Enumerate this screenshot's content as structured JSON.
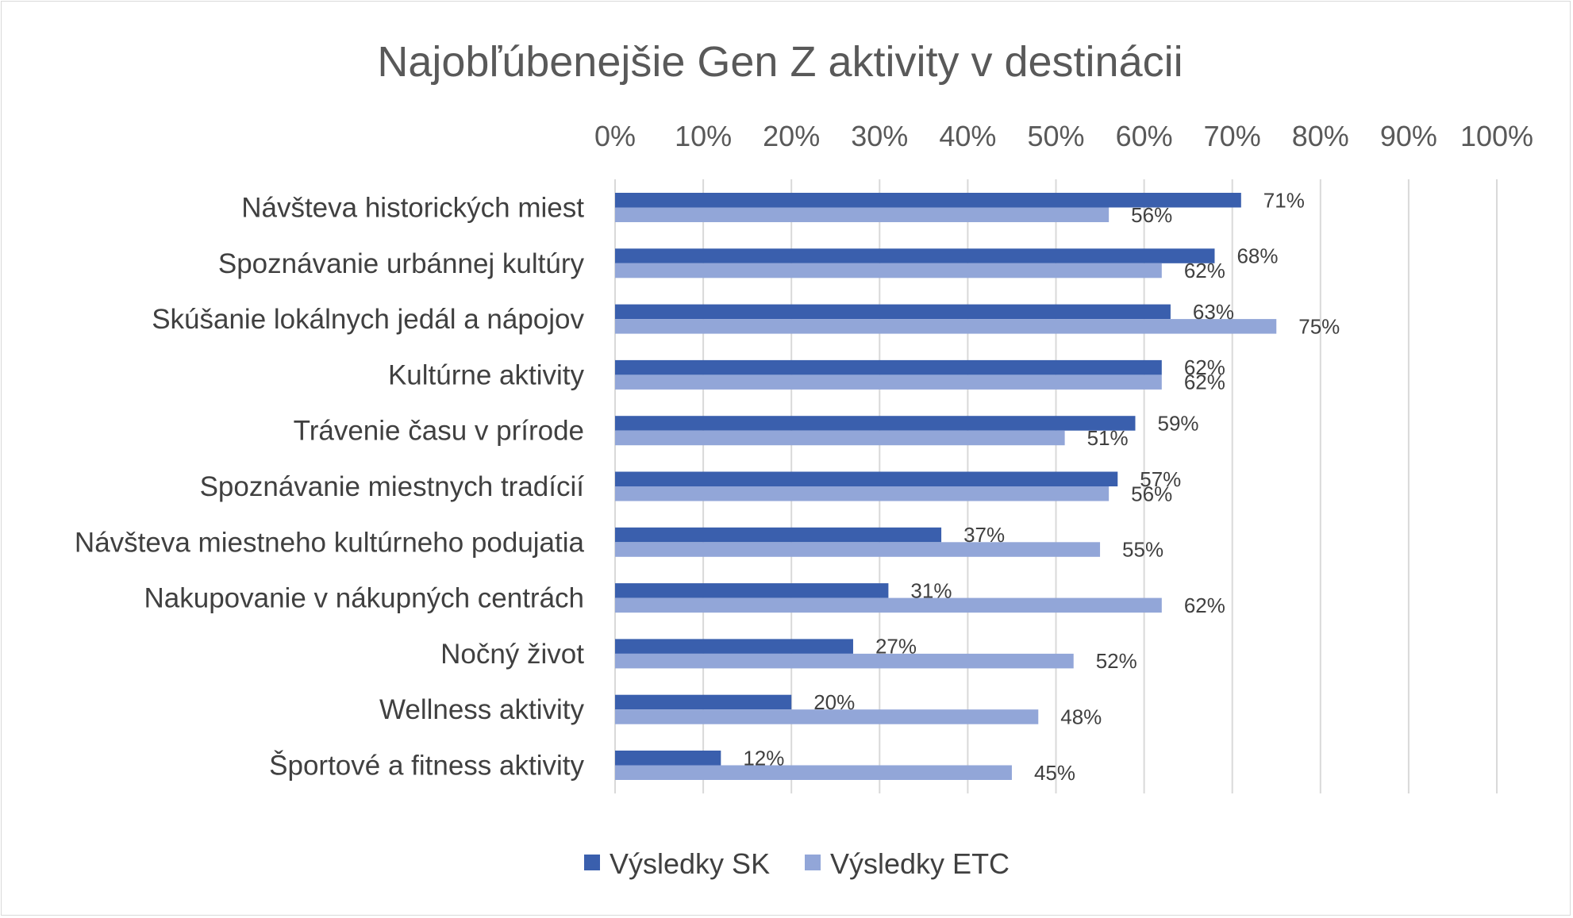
{
  "chart_data": {
    "type": "bar",
    "orientation": "horizontal",
    "title": "Najobľúbenejšie Gen Z aktivity v destinácii",
    "xlabel": "",
    "ylabel": "",
    "xlim": [
      0,
      100
    ],
    "x_ticks": [
      "0%",
      "10%",
      "20%",
      "30%",
      "40%",
      "50%",
      "60%",
      "70%",
      "80%",
      "90%",
      "100%"
    ],
    "tick_values": [
      0,
      10,
      20,
      30,
      40,
      50,
      60,
      70,
      80,
      90,
      100
    ],
    "x_axis_position": "top",
    "grid": true,
    "legend_position": "bottom",
    "categories": [
      "Návšteva historických miest",
      "Spoznávanie urbánnej kultúry",
      "Skúšanie lokálnych jedál a nápojov",
      "Kultúrne aktivity",
      "Trávenie času v prírode",
      "Spoznávanie miestnych tradícií",
      "Návšteva miestneho kultúrneho podujatia",
      "Nakupovanie v nákupných centrách",
      "Nočný život",
      "Wellness aktivity",
      "Športové a fitness aktivity"
    ],
    "series": [
      {
        "name": "Výsledky SK",
        "color": "#3a5fad",
        "values": [
          71,
          68,
          63,
          62,
          59,
          57,
          37,
          31,
          27,
          20,
          12
        ],
        "labels": [
          "71%",
          "68%",
          "63%",
          "62%",
          "59%",
          "57%",
          "37%",
          "31%",
          "27%",
          "20%",
          "12%"
        ]
      },
      {
        "name": "Výsledky ETC",
        "color": "#92a6d8",
        "values": [
          56,
          62,
          75,
          62,
          51,
          56,
          55,
          62,
          52,
          48,
          45
        ],
        "labels": [
          "56%",
          "62%",
          "75%",
          "62%",
          "51%",
          "56%",
          "55%",
          "62%",
          "52%",
          "48%",
          "45%"
        ]
      }
    ]
  }
}
